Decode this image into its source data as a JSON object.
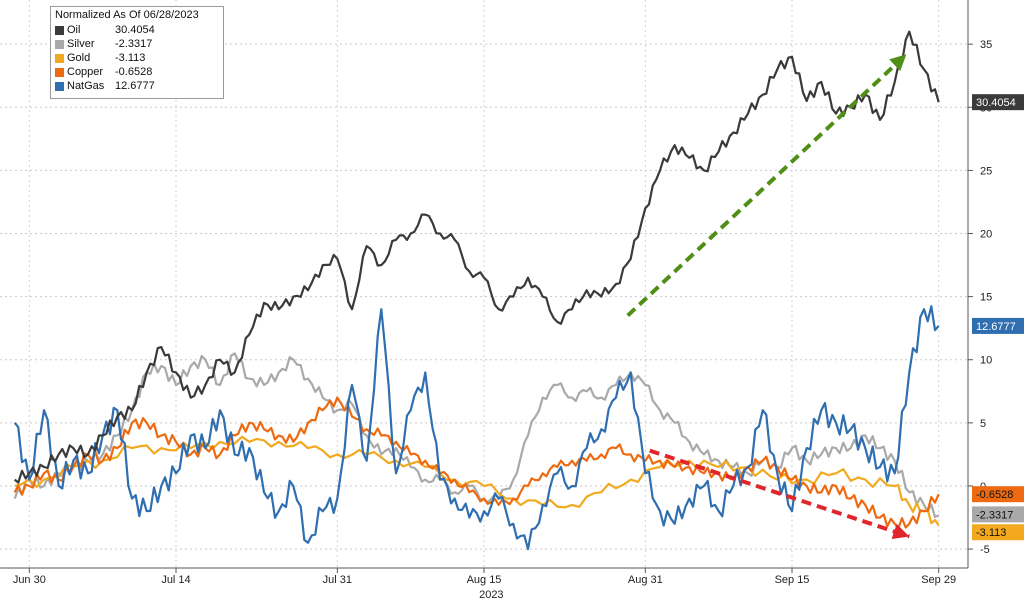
{
  "chart_data": {
    "type": "line",
    "title": "",
    "xlabel": "",
    "ylabel": "",
    "ylim": [
      -6.5,
      38.5
    ],
    "grid": true,
    "legend_placement": "top-left",
    "legend_title": "Normalized As Of 06/28/2023",
    "x_tick_labels": [
      "Jun 30",
      "Jul 14",
      "Jul 31",
      "Aug 15",
      "Aug 31",
      "Sep 15",
      "Sep 29"
    ],
    "x_year_label": "2023",
    "y_ticks": [
      -5,
      0,
      5,
      10,
      15,
      20,
      25,
      30,
      35
    ],
    "colors": {
      "Oil": "#3a3a3a",
      "Silver": "#a9a9a9",
      "Gold": "#f2a91f",
      "Copper": "#ee6a10",
      "NatGas": "#2f6fb1",
      "green_arrow": "#4f8f16",
      "red_arrow": "#e0262b"
    },
    "x_range": [
      -1,
      65
    ],
    "x_tick_positions": [
      1,
      11,
      22,
      32,
      43,
      53,
      63
    ],
    "series": [
      {
        "name": "Oil",
        "last_label": "30.4054",
        "points": [
          [
            0,
            0.5
          ],
          [
            1,
            1
          ],
          [
            2,
            1.5
          ],
          [
            3,
            2.5
          ],
          [
            4,
            3
          ],
          [
            5,
            2.5
          ],
          [
            6,
            4
          ],
          [
            7,
            5.5
          ],
          [
            8,
            6
          ],
          [
            9,
            9
          ],
          [
            10,
            11
          ],
          [
            11,
            9
          ],
          [
            12,
            7
          ],
          [
            13,
            8
          ],
          [
            14,
            10
          ],
          [
            15,
            9
          ],
          [
            16,
            12
          ],
          [
            17,
            14.5
          ],
          [
            18,
            14
          ],
          [
            19,
            15
          ],
          [
            20,
            15.5
          ],
          [
            21,
            17.5
          ],
          [
            22,
            18
          ],
          [
            23,
            14
          ],
          [
            24,
            19
          ],
          [
            25,
            17.5
          ],
          [
            26,
            19.5
          ],
          [
            27,
            20
          ],
          [
            28,
            21.5
          ],
          [
            29,
            20
          ],
          [
            30,
            19.5
          ],
          [
            31,
            17
          ],
          [
            32,
            16.5
          ],
          [
            33,
            14
          ],
          [
            34,
            15
          ],
          [
            35,
            16.5
          ],
          [
            36,
            15
          ],
          [
            37,
            13
          ],
          [
            38,
            14
          ],
          [
            39,
            15.5
          ],
          [
            40,
            15
          ],
          [
            41,
            16
          ],
          [
            42,
            18
          ],
          [
            43,
            22
          ],
          [
            44,
            25
          ],
          [
            45,
            27
          ],
          [
            46,
            26
          ],
          [
            47,
            25
          ],
          [
            48,
            26.5
          ],
          [
            49,
            28
          ],
          [
            50,
            29.5
          ],
          [
            51,
            31
          ],
          [
            52,
            33
          ],
          [
            53,
            34
          ],
          [
            54,
            30.5
          ],
          [
            55,
            32
          ],
          [
            56,
            29.5
          ],
          [
            57,
            30
          ],
          [
            58,
            31
          ],
          [
            59,
            29
          ],
          [
            60,
            32
          ],
          [
            61,
            36
          ],
          [
            62,
            33
          ],
          [
            63,
            30.4054
          ]
        ]
      },
      {
        "name": "Silver",
        "last_label": "-2.3317",
        "points": [
          [
            0,
            -1
          ],
          [
            1,
            0.5
          ],
          [
            2,
            0
          ],
          [
            3,
            1
          ],
          [
            4,
            1.5
          ],
          [
            5,
            2
          ],
          [
            6,
            2.5
          ],
          [
            7,
            4
          ],
          [
            8,
            6
          ],
          [
            9,
            9
          ],
          [
            10,
            9.5
          ],
          [
            11,
            8
          ],
          [
            12,
            9.5
          ],
          [
            13,
            10
          ],
          [
            14,
            8
          ],
          [
            15,
            10.5
          ],
          [
            16,
            8.5
          ],
          [
            17,
            8
          ],
          [
            18,
            9
          ],
          [
            19,
            10
          ],
          [
            20,
            8.5
          ],
          [
            21,
            7
          ],
          [
            22,
            6
          ],
          [
            23,
            6.5
          ],
          [
            24,
            4
          ],
          [
            25,
            2.5
          ],
          [
            26,
            3
          ],
          [
            27,
            1.5
          ],
          [
            28,
            0.5
          ],
          [
            29,
            0.5
          ],
          [
            30,
            -0.5
          ],
          [
            31,
            0
          ],
          [
            32,
            -1
          ],
          [
            33,
            -1
          ],
          [
            34,
            0.5
          ],
          [
            35,
            4
          ],
          [
            36,
            7
          ],
          [
            37,
            8
          ],
          [
            38,
            7
          ],
          [
            39,
            7.5
          ],
          [
            40,
            7
          ],
          [
            41,
            8
          ],
          [
            42,
            9
          ],
          [
            43,
            8
          ],
          [
            44,
            6
          ],
          [
            45,
            5
          ],
          [
            46,
            3.5
          ],
          [
            47,
            2.5
          ],
          [
            48,
            2
          ],
          [
            49,
            1.5
          ],
          [
            50,
            1
          ],
          [
            51,
            2
          ],
          [
            52,
            1.5
          ],
          [
            53,
            3
          ],
          [
            54,
            2
          ],
          [
            55,
            2.5
          ],
          [
            56,
            3
          ],
          [
            57,
            3
          ],
          [
            58,
            4
          ],
          [
            59,
            3
          ],
          [
            60,
            2
          ],
          [
            61,
            -0.5
          ],
          [
            62,
            -1.5
          ],
          [
            63,
            -2.3317
          ]
        ]
      },
      {
        "name": "Gold",
        "last_label": "-3.113",
        "points": [
          [
            0,
            0
          ],
          [
            2,
            0.5
          ],
          [
            4,
            1.5
          ],
          [
            6,
            2
          ],
          [
            8,
            3
          ],
          [
            10,
            3
          ],
          [
            12,
            3
          ],
          [
            14,
            3.5
          ],
          [
            16,
            3.5
          ],
          [
            18,
            3.5
          ],
          [
            20,
            3
          ],
          [
            22,
            2.5
          ],
          [
            24,
            2.5
          ],
          [
            26,
            2
          ],
          [
            28,
            1.5
          ],
          [
            30,
            0.5
          ],
          [
            32,
            0
          ],
          [
            34,
            -1
          ],
          [
            36,
            -1.5
          ],
          [
            38,
            -1.5
          ],
          [
            40,
            -0.5
          ],
          [
            42,
            0.5
          ],
          [
            44,
            1.5
          ],
          [
            46,
            2
          ],
          [
            48,
            1.5
          ],
          [
            50,
            1.5
          ],
          [
            52,
            0.5
          ],
          [
            54,
            0.5
          ],
          [
            56,
            1
          ],
          [
            58,
            0.5
          ],
          [
            60,
            0
          ],
          [
            61,
            -1.5
          ],
          [
            62,
            -2
          ],
          [
            63,
            -3.113
          ]
        ]
      },
      {
        "name": "Copper",
        "last_label": "-0.6528",
        "points": [
          [
            0,
            -0.5
          ],
          [
            1,
            0
          ],
          [
            2,
            1
          ],
          [
            3,
            0.5
          ],
          [
            4,
            1.5
          ],
          [
            5,
            2.5
          ],
          [
            6,
            2
          ],
          [
            7,
            3
          ],
          [
            8,
            5
          ],
          [
            9,
            5
          ],
          [
            10,
            4
          ],
          [
            11,
            3.5
          ],
          [
            12,
            2.5
          ],
          [
            13,
            3
          ],
          [
            14,
            2.5
          ],
          [
            15,
            4
          ],
          [
            16,
            5
          ],
          [
            17,
            4.5
          ],
          [
            18,
            4
          ],
          [
            19,
            3.5
          ],
          [
            20,
            5
          ],
          [
            21,
            6
          ],
          [
            22,
            7
          ],
          [
            23,
            5.5
          ],
          [
            24,
            4.5
          ],
          [
            25,
            4
          ],
          [
            26,
            3.5
          ],
          [
            27,
            2.5
          ],
          [
            28,
            2
          ],
          [
            29,
            1
          ],
          [
            30,
            0.5
          ],
          [
            31,
            -0.5
          ],
          [
            32,
            -1
          ],
          [
            33,
            -1.5
          ],
          [
            34,
            -1
          ],
          [
            35,
            0
          ],
          [
            36,
            1
          ],
          [
            37,
            1.5
          ],
          [
            38,
            2
          ],
          [
            39,
            2
          ],
          [
            40,
            2.5
          ],
          [
            41,
            3
          ],
          [
            42,
            2.5
          ],
          [
            43,
            2
          ],
          [
            44,
            2
          ],
          [
            45,
            1.5
          ],
          [
            46,
            1.5
          ],
          [
            47,
            1
          ],
          [
            48,
            1
          ],
          [
            49,
            0.5
          ],
          [
            50,
            1.5
          ],
          [
            51,
            2
          ],
          [
            52,
            1.5
          ],
          [
            53,
            0.5
          ],
          [
            54,
            0
          ],
          [
            55,
            -0.5
          ],
          [
            56,
            0
          ],
          [
            57,
            -1
          ],
          [
            58,
            -1.5
          ],
          [
            59,
            -2.5
          ],
          [
            60,
            -3
          ],
          [
            61,
            -3
          ],
          [
            62,
            -2
          ],
          [
            63,
            -0.6528
          ]
        ]
      },
      {
        "name": "NatGas",
        "last_label": "12.6777",
        "points": [
          [
            0,
            5
          ],
          [
            1,
            0.5
          ],
          [
            2,
            6
          ],
          [
            3,
            0
          ],
          [
            4,
            2
          ],
          [
            5,
            1
          ],
          [
            6,
            4
          ],
          [
            7,
            6
          ],
          [
            8,
            -1
          ],
          [
            9,
            -2
          ],
          [
            10,
            0
          ],
          [
            11,
            1
          ],
          [
            12,
            4
          ],
          [
            13,
            3
          ],
          [
            14,
            6
          ],
          [
            15,
            2.5
          ],
          [
            16,
            3
          ],
          [
            17,
            -0.5
          ],
          [
            18,
            -2
          ],
          [
            19,
            0
          ],
          [
            20,
            -4.5
          ],
          [
            21,
            -2
          ],
          [
            22,
            -1
          ],
          [
            23,
            8
          ],
          [
            24,
            2
          ],
          [
            25,
            14
          ],
          [
            26,
            1
          ],
          [
            27,
            6
          ],
          [
            28,
            9
          ],
          [
            29,
            0.5
          ],
          [
            30,
            -1
          ],
          [
            31,
            -2.5
          ],
          [
            32,
            -2
          ],
          [
            33,
            -1
          ],
          [
            34,
            -3
          ],
          [
            35,
            -5
          ],
          [
            36,
            -1.5
          ],
          [
            37,
            1
          ],
          [
            38,
            0
          ],
          [
            39,
            3
          ],
          [
            40,
            4.5
          ],
          [
            41,
            7
          ],
          [
            42,
            9
          ],
          [
            43,
            1
          ],
          [
            44,
            -2
          ],
          [
            45,
            -3
          ],
          [
            46,
            -1
          ],
          [
            47,
            0
          ],
          [
            48,
            -2
          ],
          [
            49,
            0
          ],
          [
            50,
            1.5
          ],
          [
            51,
            6
          ],
          [
            52,
            1
          ],
          [
            53,
            -2
          ],
          [
            54,
            3
          ],
          [
            55,
            6
          ],
          [
            56,
            5
          ],
          [
            57,
            4.5
          ],
          [
            58,
            3
          ],
          [
            59,
            1.5
          ],
          [
            60,
            1
          ],
          [
            61,
            9
          ],
          [
            62,
            14
          ],
          [
            63,
            12.6777
          ]
        ]
      }
    ]
  }
}
